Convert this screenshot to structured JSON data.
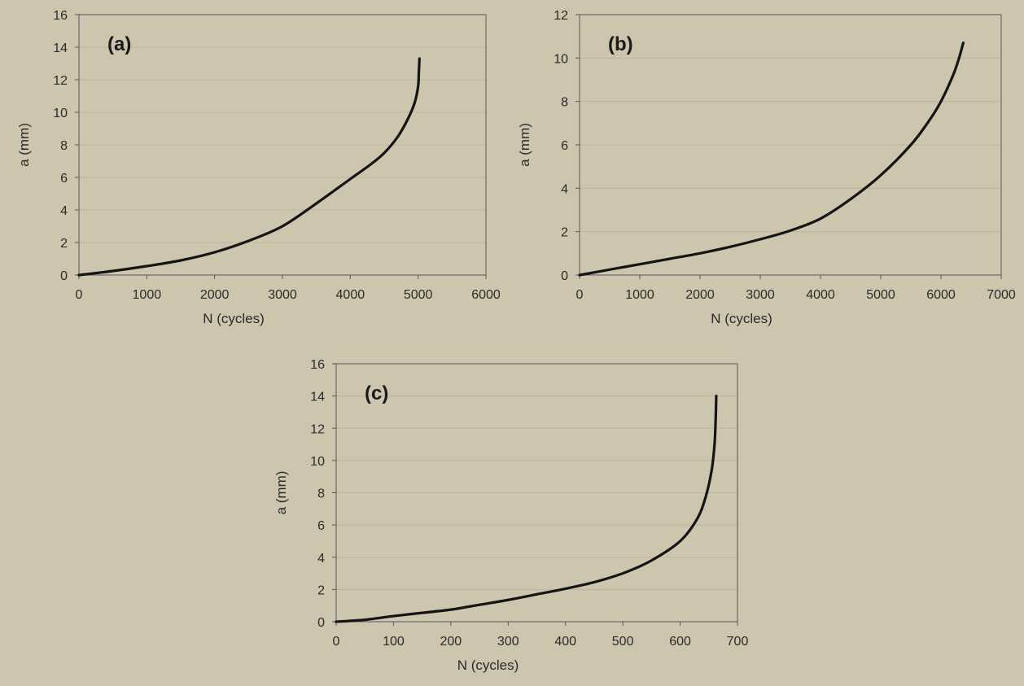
{
  "background_color": "#cdc5ae",
  "line_color": "#141414",
  "chart_data": [
    {
      "type": "line",
      "panel_label": "(a)",
      "xlabel": "N (cycles)",
      "ylabel": "a (mm)",
      "xlim": [
        0,
        6000
      ],
      "ylim": [
        0,
        16
      ],
      "xticks": [
        "0",
        "1000",
        "2000",
        "3000",
        "4000",
        "5000",
        "6000"
      ],
      "yticks": [
        "0",
        "2",
        "4",
        "6",
        "8",
        "10",
        "12",
        "14",
        "16"
      ],
      "grid": true,
      "series": [
        {
          "x": [
            0,
            500,
            1000,
            1500,
            2000,
            2500,
            3000,
            3500,
            4000,
            4300,
            4500,
            4700,
            4850,
            4950,
            5000,
            5010,
            5020
          ],
          "y": [
            0,
            0.25,
            0.55,
            0.9,
            1.4,
            2.1,
            3.0,
            4.4,
            5.9,
            6.8,
            7.5,
            8.5,
            9.6,
            10.6,
            11.6,
            12.4,
            13.3
          ]
        }
      ]
    },
    {
      "type": "line",
      "panel_label": "(b)",
      "xlabel": "N (cycles)",
      "ylabel": "a (mm)",
      "xlim": [
        0,
        7000
      ],
      "ylim": [
        0,
        12
      ],
      "xticks": [
        "0",
        "1000",
        "2000",
        "3000",
        "4000",
        "5000",
        "6000",
        "7000"
      ],
      "yticks": [
        "0",
        "2",
        "4",
        "6",
        "8",
        "10",
        "12"
      ],
      "grid": true,
      "series": [
        {
          "x": [
            0,
            500,
            1000,
            1500,
            2000,
            2500,
            3000,
            3500,
            4000,
            4500,
            5000,
            5500,
            5800,
            6000,
            6200,
            6300,
            6370
          ],
          "y": [
            0,
            0.25,
            0.5,
            0.75,
            1.0,
            1.3,
            1.65,
            2.05,
            2.6,
            3.5,
            4.6,
            6.0,
            7.1,
            8.0,
            9.2,
            10.0,
            10.7
          ]
        }
      ]
    },
    {
      "type": "line",
      "panel_label": "(c)",
      "xlabel": "N (cycles)",
      "ylabel": "a (mm)",
      "xlim": [
        0,
        700
      ],
      "ylim": [
        0,
        16
      ],
      "xticks": [
        "0",
        "100",
        "200",
        "300",
        "400",
        "500",
        "600",
        "700"
      ],
      "yticks": [
        "0",
        "2",
        "4",
        "6",
        "8",
        "10",
        "12",
        "14",
        "16"
      ],
      "grid": true,
      "series": [
        {
          "x": [
            0,
            50,
            100,
            150,
            200,
            250,
            300,
            350,
            400,
            450,
            500,
            550,
            600,
            630,
            645,
            655,
            660,
            662,
            663
          ],
          "y": [
            0,
            0.12,
            0.35,
            0.55,
            0.75,
            1.05,
            1.35,
            1.7,
            2.05,
            2.45,
            3.0,
            3.8,
            5.0,
            6.4,
            7.8,
            9.4,
            11.0,
            12.6,
            14.0
          ]
        }
      ]
    }
  ]
}
